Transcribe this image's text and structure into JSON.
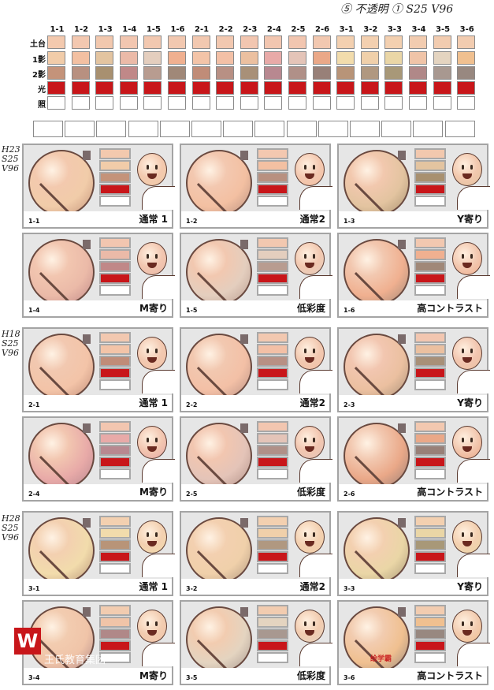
{
  "notes": {
    "top": "⑤ 不透明 ① S25 V96",
    "group1": "H23 S25 V96",
    "group2": "H18 S25 V96",
    "group3": "H28 S25 V96"
  },
  "table": {
    "row_labels": [
      "土台",
      "1影",
      "2影",
      "光",
      "照"
    ],
    "light_color": "#c8161a",
    "columns": [
      {
        "id": "1-1",
        "base": "#f3c9ae",
        "s1": "#f1cca9",
        "s2": "#c4937a"
      },
      {
        "id": "1-2",
        "base": "#f3c8b0",
        "s1": "#f3c0a2",
        "s2": "#b89080"
      },
      {
        "id": "1-3",
        "base": "#f2c8ae",
        "s1": "#e3c4a0",
        "s2": "#a89070"
      },
      {
        "id": "1-4",
        "base": "#f2c6b0",
        "s1": "#ebbaa8",
        "s2": "#c08888"
      },
      {
        "id": "1-5",
        "base": "#f2c8b0",
        "s1": "#e4cebe",
        "s2": "#b89c90"
      },
      {
        "id": "1-6",
        "base": "#f2c8b0",
        "s1": "#f0b090",
        "s2": "#a08878"
      },
      {
        "id": "2-1",
        "base": "#f2c8b0",
        "s1": "#f3c4a8",
        "s2": "#c08c78"
      },
      {
        "id": "2-2",
        "base": "#f2c8b0",
        "s1": "#f3c0a6",
        "s2": "#b89084"
      },
      {
        "id": "2-3",
        "base": "#f2c6b0",
        "s1": "#ebc0a0",
        "s2": "#a89078"
      },
      {
        "id": "2-4",
        "base": "#f2c6b0",
        "s1": "#e8aaa8",
        "s2": "#b88890"
      },
      {
        "id": "2-5",
        "base": "#f2c6b0",
        "s1": "#e4c4b8",
        "s2": "#b09088"
      },
      {
        "id": "2-6",
        "base": "#f2c8b0",
        "s1": "#eaa888",
        "s2": "#988078"
      },
      {
        "id": "3-1",
        "base": "#f3d0b0",
        "s1": "#f2dcac",
        "s2": "#b89478"
      },
      {
        "id": "3-2",
        "base": "#f3d0b0",
        "s1": "#f0d0aa",
        "s2": "#b09880"
      },
      {
        "id": "3-3",
        "base": "#f3d0b0",
        "s1": "#ead6a6",
        "s2": "#a89878"
      },
      {
        "id": "3-4",
        "base": "#f2ccb0",
        "s1": "#f0c4a8",
        "s2": "#b08888"
      },
      {
        "id": "3-5",
        "base": "#f2ccb0",
        "s1": "#e4d4c0",
        "s2": "#a89890"
      },
      {
        "id": "3-6",
        "base": "#f2ccb0",
        "s1": "#f0c090",
        "s2": "#988880"
      }
    ]
  },
  "card_names": [
    "通常 1",
    "通常2",
    "Y寄り",
    "M寄り",
    "低彩度",
    "高コントラスト"
  ],
  "watermark": {
    "brand": "王氏教育集团",
    "sub": "绘学霸"
  }
}
